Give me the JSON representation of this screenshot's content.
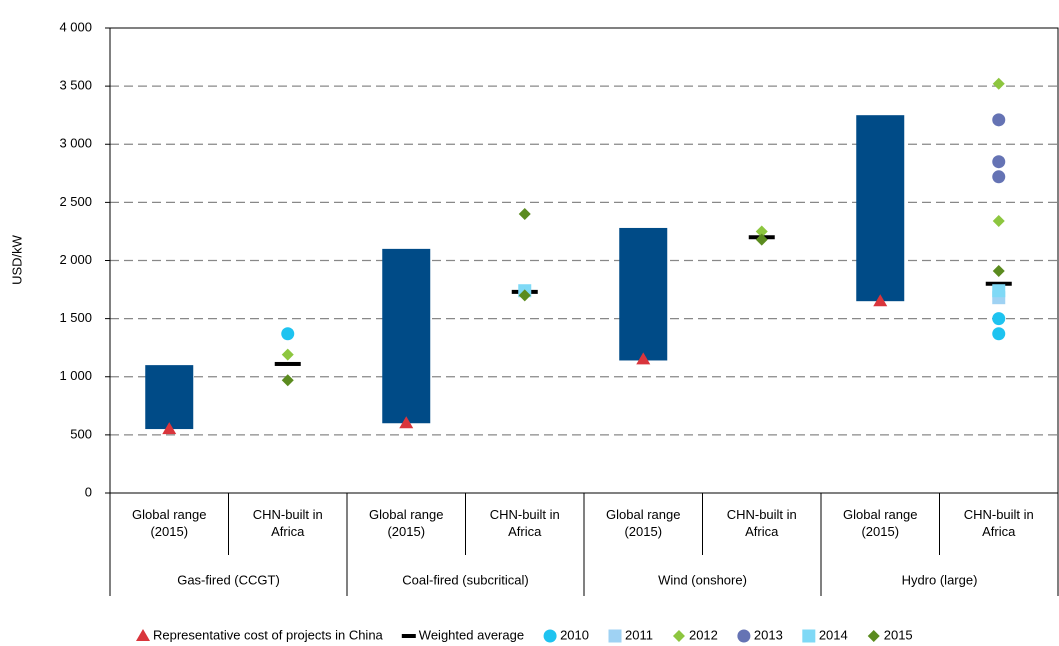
{
  "chart_data": {
    "type": "range-scatter",
    "ylabel": "USD/kW",
    "ylim": [
      0,
      4000
    ],
    "yticks": [
      0,
      500,
      {
        "value": 1000,
        "label": "1 000"
      },
      {
        "value": 1500,
        "label": "1 500"
      },
      {
        "value": 2000,
        "label": "2 000"
      },
      {
        "value": 2500,
        "label": "2 500"
      },
      {
        "value": 3000,
        "label": "3 000"
      },
      {
        "value": 3500,
        "label": "3 500"
      },
      {
        "value": 4000,
        "label": "4 000"
      }
    ],
    "grid": true,
    "categories": [
      "Global range (2015)",
      "CHN-built in Africa",
      "Global range (2015)",
      "CHN-built in Africa",
      "Global range (2015)",
      "CHN-built in Africa",
      "Global range (2015)",
      "CHN-built in Africa"
    ],
    "groups": [
      "Gas-fired (CCGT)",
      "Coal-fired (subcritical)",
      "Wind (onshore)",
      "Hydro (large)"
    ],
    "ranges": {
      "color": "#004b87",
      "low": [
        550,
        null,
        600,
        null,
        1140,
        null,
        1650,
        null
      ],
      "high": [
        1100,
        null,
        2100,
        null,
        2280,
        null,
        3250,
        null
      ]
    },
    "legend": "bottom",
    "series": [
      {
        "name": "Representative cost of projects in China",
        "color": "#d9353c",
        "marker": "triangle",
        "values": [
          550,
          null,
          600,
          null,
          1150,
          null,
          1650,
          null
        ]
      },
      {
        "name": "Weighted average",
        "color": "#000000",
        "marker": "dash",
        "values": [
          null,
          1110,
          null,
          1730,
          null,
          2200,
          null,
          1800
        ]
      },
      {
        "name": "2010",
        "color": "#1ec3f0",
        "marker": "circle",
        "values": [
          null,
          [
            1370
          ],
          null,
          null,
          null,
          null,
          null,
          [
            1500,
            1370
          ]
        ]
      },
      {
        "name": "2011",
        "color": "#9fd2f3",
        "marker": "square",
        "values": [
          null,
          null,
          null,
          null,
          null,
          null,
          null,
          [
            1680
          ]
        ]
      },
      {
        "name": "2012",
        "color": "#8dc63f",
        "marker": "diamond",
        "values": [
          null,
          [
            1190
          ],
          null,
          null,
          null,
          [
            2250
          ],
          null,
          [
            3520,
            2340
          ]
        ]
      },
      {
        "name": "2013",
        "color": "#6573b4",
        "marker": "circle",
        "values": [
          null,
          null,
          null,
          null,
          null,
          null,
          null,
          [
            3210,
            2850,
            2720
          ]
        ]
      },
      {
        "name": "2014",
        "color": "#7fd9f6",
        "marker": "square",
        "values": [
          null,
          null,
          null,
          [
            1740
          ],
          null,
          null,
          null,
          [
            1740
          ]
        ]
      },
      {
        "name": "2015",
        "color": "#5b8b1f",
        "marker": "diamond",
        "values": [
          null,
          [
            970
          ],
          null,
          [
            2400,
            1700
          ],
          null,
          [
            2180
          ],
          null,
          [
            1910
          ]
        ]
      }
    ]
  }
}
